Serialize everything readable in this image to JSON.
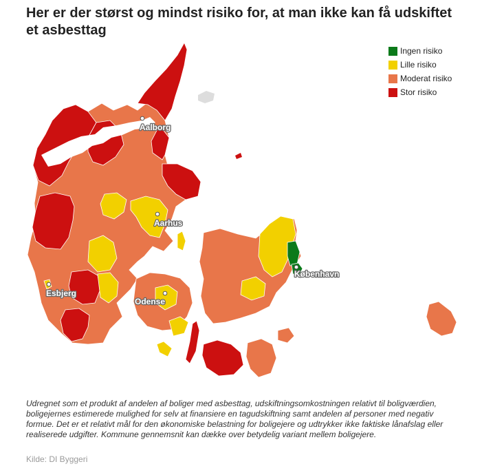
{
  "title": "Her er der størst og mindst risiko for, at man ikke kan få udskiftet et asbesttag",
  "legend": {
    "items": [
      {
        "label": "Ingen risiko",
        "color": "#0b7a1a"
      },
      {
        "label": "Lille risiko",
        "color": "#f2d000"
      },
      {
        "label": "Moderat risiko",
        "color": "#e8764a"
      },
      {
        "label": "Stor risiko",
        "color": "#cc1010"
      }
    ]
  },
  "cities": [
    {
      "name": "Aalborg"
    },
    {
      "name": "Aarhus"
    },
    {
      "name": "København"
    },
    {
      "name": "Esbjerg"
    },
    {
      "name": "Odense"
    }
  ],
  "note": "Udregnet som et produkt af andelen af boliger med asbesttag, udskiftningsomkostningen relativt til boligværdien, boligejernes estimerede mulighed for selv at finansiere en tagudskiftning samt andelen af personer med negativ formue. Det er et relativt mål for den økonomiske belastning for boligejere og udtrykker ikke faktiske lånafslag eller realiserede udgifter. Kommune gennemsnit kan dække over betydelig variant mellem boligejere.",
  "source": "Kilde: DI Byggeri"
}
